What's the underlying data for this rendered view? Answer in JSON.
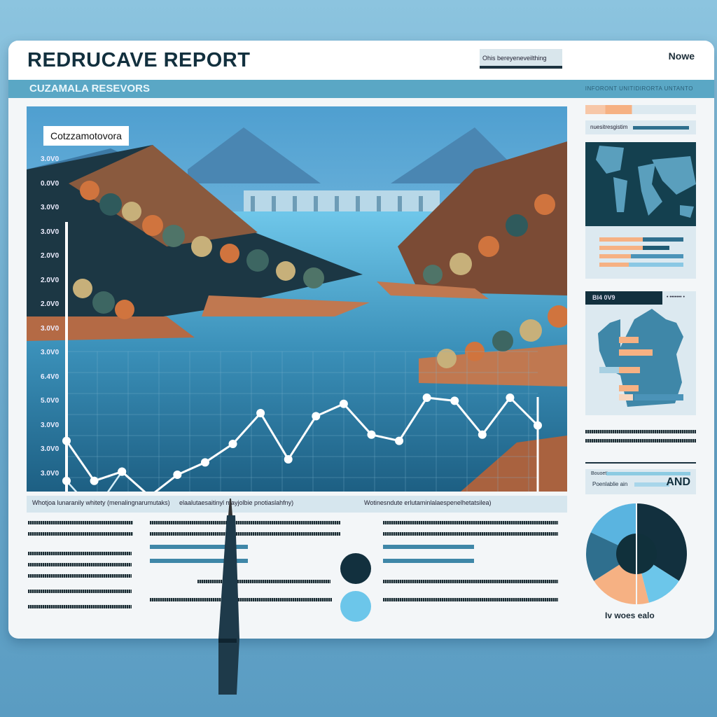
{
  "header": {
    "title": "REDRUCAVE REPORT",
    "search_text": "Ohis bereyeneveilthing",
    "nav_link": "Nowe"
  },
  "subheader": {
    "title": "CUZAMALA RESEVORS",
    "right_text": "INFORONT UNITIDIRORTA  UNTANTO"
  },
  "colors": {
    "navy": "#12303e",
    "teal": "#3f87a8",
    "sky": "#6cc6ea",
    "peach": "#f6b183",
    "accent_bar": "#5aa7c5"
  },
  "chart_data": {
    "type": "line",
    "title": "Cotzzamotovora",
    "ytick_labels": [
      "3.0V0",
      "0.0V0",
      "3.0V0",
      "3.0V0",
      "2.0V0",
      "2.0V0",
      "2.0V0",
      "3.0V0",
      "3.0V0",
      "6.4V0",
      "5.0V0",
      "3.0V0",
      "3.0V0",
      "3.0V0",
      "3.0V0"
    ],
    "grid": true,
    "series": [
      {
        "values": [
          26,
          13,
          16,
          8,
          15,
          19,
          25,
          35,
          20,
          34,
          38,
          28,
          26,
          40,
          39,
          28,
          40,
          31
        ]
      },
      {
        "values": [
          13,
          3,
          16
        ]
      }
    ]
  },
  "tabs": [
    "Whotjoa lunaranily whitety (menalingnarumutaks)",
    "elaalutaesaitinyl mayjolbie pnotiaslahfny)",
    "Wotinesndute erlutaminlalaespenelhetatsilea)"
  ],
  "sidebar": {
    "search_label": "nuesitresgistim",
    "map_header": "BI4 0V9",
    "map_header_right": "• ••••••• •",
    "summary_lines": [
      "Bouoetta",
      "Poenlablie ain"
    ],
    "summary_value": "AND",
    "pie_caption": "Iv woes ealo",
    "pie_slices": [
      {
        "value": 34,
        "color": "#12303e"
      },
      {
        "value": 12,
        "color": "#6cc6ea"
      },
      {
        "value": 20,
        "color": "#f6b183"
      },
      {
        "value": 16,
        "color": "#2f6f8e"
      },
      {
        "value": 18,
        "color": "#5ab4e0"
      }
    ]
  }
}
